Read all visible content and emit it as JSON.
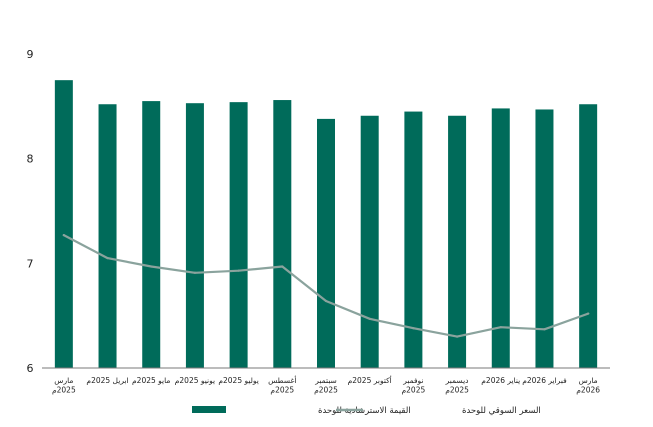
{
  "chart_data": {
    "type": "bar",
    "categories": [
      [
        "مارس",
        "2025م"
      ],
      [
        "ابريل 2025م"
      ],
      [
        "مايو 2025م"
      ],
      [
        "يونيو 2025م"
      ],
      [
        "يوليو 2025م"
      ],
      [
        "أغسطس",
        "2025م"
      ],
      [
        "سبتمبر",
        "2025م"
      ],
      [
        "أكتوبر 2025م"
      ],
      [
        "نوفمبر",
        "2025م"
      ],
      [
        "ديسمبر",
        "2025م"
      ],
      [
        "يناير 2026م"
      ],
      [
        "فبراير 2026م"
      ],
      [
        "مارس",
        "2026م"
      ]
    ],
    "series": [
      {
        "name": "القيمة الاسترشادية للوحدة",
        "kind": "bar",
        "color": "#006b5a",
        "values": [
          8.75,
          8.52,
          8.55,
          8.53,
          8.54,
          8.56,
          8.38,
          8.41,
          8.45,
          8.41,
          8.48,
          8.47,
          8.52
        ]
      },
      {
        "name": "السعر السوقي للوحدة",
        "kind": "line",
        "color": "#8aa39d",
        "values": [
          7.27,
          7.05,
          6.97,
          6.91,
          6.93,
          6.97,
          6.64,
          6.47,
          6.38,
          6.3,
          6.39,
          6.37,
          6.52
        ]
      }
    ],
    "yticks": [
      6,
      7,
      8,
      9
    ],
    "ylim": [
      6,
      9
    ],
    "grid": false,
    "legend_position": "bottom"
  }
}
